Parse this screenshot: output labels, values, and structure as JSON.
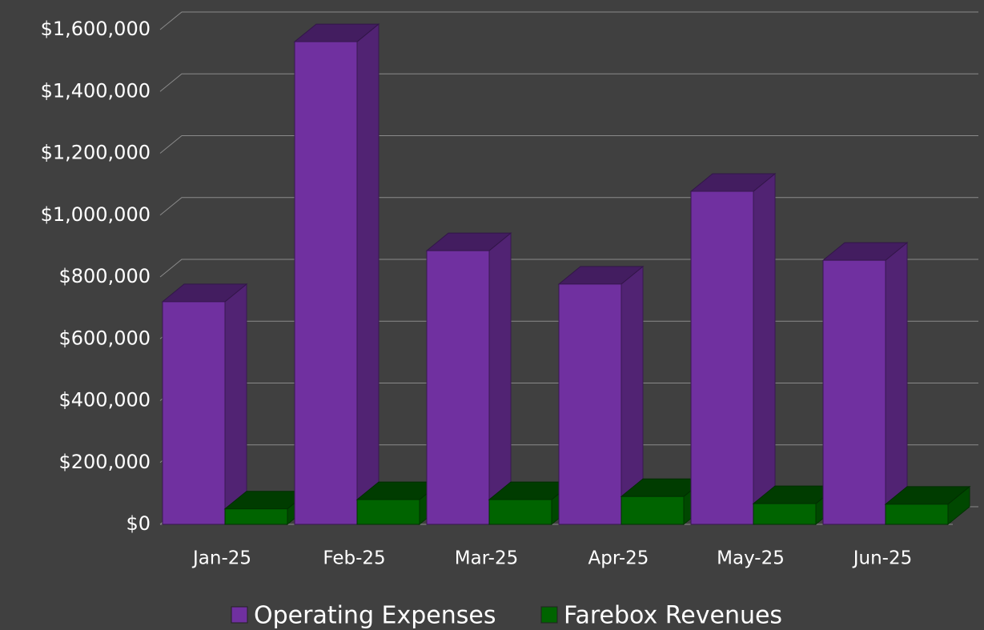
{
  "chart_data": {
    "type": "bar3d",
    "categories": [
      "Jan-25",
      "Feb-25",
      "Mar-25",
      "Apr-25",
      "May-25",
      "Jun-25"
    ],
    "series": [
      {
        "name": "Operating Expenses",
        "color": "#7030a0",
        "values": [
          720000,
          1561000,
          885000,
          777000,
          1077000,
          854000
        ]
      },
      {
        "name": "Farebox Revenues",
        "color": "#006400",
        "values": [
          50000,
          80000,
          80000,
          90000,
          67000,
          65000
        ]
      }
    ],
    "ylim": [
      0,
      1600000
    ],
    "yticks": [
      {
        "value": 0,
        "label": "$0"
      },
      {
        "value": 200000,
        "label": "$200,000"
      },
      {
        "value": 400000,
        "label": "$400,000"
      },
      {
        "value": 600000,
        "label": "$600,000"
      },
      {
        "value": 800000,
        "label": "$800,000"
      },
      {
        "value": 1000000,
        "label": "$1,000,000"
      },
      {
        "value": 1200000,
        "label": "$1,200,000"
      },
      {
        "value": 1400000,
        "label": "$1,400,000"
      },
      {
        "value": 1600000,
        "label": "$1,600,000"
      }
    ],
    "grid": true,
    "legend": "bottom"
  }
}
